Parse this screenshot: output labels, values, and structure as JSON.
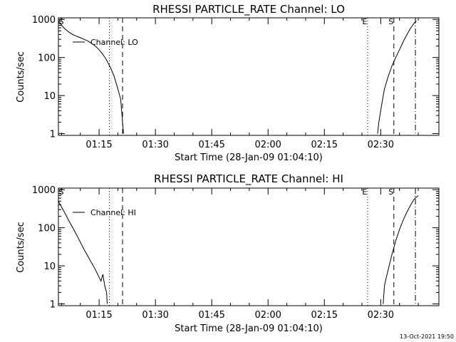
{
  "chart_data": [
    {
      "type": "line",
      "title": "RHESSI PARTICLE_RATE Channel: LO",
      "xlabel": "Start Time (28-Jan-09 01:04:10)",
      "ylabel": "Counts/sec",
      "yscale": "log",
      "xlim": [
        "01:04:10",
        "02:45:30"
      ],
      "ylim": [
        0.9,
        1100
      ],
      "x_ticks": [
        "01:15",
        "01:30",
        "01:45",
        "02:00",
        "02:15",
        "02:30"
      ],
      "y_ticks": [
        "1",
        "10",
        "100",
        "1000"
      ],
      "legend": {
        "placement": "top-left",
        "entries": [
          "Channel: LO"
        ]
      },
      "markers": [
        {
          "label": "S",
          "time": "01:04:10",
          "style": "none"
        },
        {
          "label": "",
          "time": "01:17:45",
          "style": "dotted"
        },
        {
          "label": "",
          "time": "01:21:15",
          "style": "dashed"
        },
        {
          "label": "E",
          "time": "02:26:30",
          "style": "dotted"
        },
        {
          "label": "S",
          "time": "02:33:30",
          "style": "dashed"
        },
        {
          "label": "",
          "time": "02:39:15",
          "style": "dashdot"
        }
      ],
      "series": [
        {
          "name": "Channel: LO",
          "segments": [
            [
              [
                "01:04:10",
                900
              ],
              [
                "01:05:00",
                700
              ],
              [
                "01:06:00",
                550
              ],
              [
                "01:07:00",
                460
              ],
              [
                "01:08:00",
                400
              ],
              [
                "01:09:00",
                360
              ],
              [
                "01:10:00",
                330
              ],
              [
                "01:11:00",
                300
              ],
              [
                "01:12:00",
                270
              ],
              [
                "01:13:00",
                235
              ],
              [
                "01:14:00",
                200
              ],
              [
                "01:15:00",
                160
              ],
              [
                "01:16:00",
                120
              ],
              [
                "01:17:00",
                85
              ],
              [
                "01:18:00",
                55
              ],
              [
                "01:19:00",
                32
              ],
              [
                "01:20:00",
                15
              ],
              [
                "01:20:45",
                8
              ],
              [
                "01:21:00",
                4
              ],
              [
                "01:21:15",
                2
              ],
              [
                "01:21:30",
                1
              ]
            ],
            [
              [
                "02:29:10",
                1
              ],
              [
                "02:29:30",
                2
              ],
              [
                "02:30:00",
                4
              ],
              [
                "02:30:30",
                8
              ],
              [
                "02:31:00",
                15
              ],
              [
                "02:32:00",
                32
              ],
              [
                "02:33:00",
                60
              ],
              [
                "02:34:00",
                100
              ],
              [
                "02:35:00",
                160
              ],
              [
                "02:36:00",
                260
              ],
              [
                "02:37:00",
                400
              ],
              [
                "02:38:00",
                600
              ],
              [
                "02:39:00",
                820
              ],
              [
                "02:39:30",
                900
              ]
            ]
          ]
        }
      ]
    },
    {
      "type": "line",
      "title": "RHESSI PARTICLE_RATE Channel: HI",
      "xlabel": "Start Time (28-Jan-09 01:04:10)",
      "ylabel": "Counts/sec",
      "yscale": "log",
      "xlim": [
        "01:04:10",
        "02:45:30"
      ],
      "ylim": [
        0.9,
        1100
      ],
      "x_ticks": [
        "01:15",
        "01:30",
        "01:45",
        "02:00",
        "02:15",
        "02:30"
      ],
      "y_ticks": [
        "1",
        "10",
        "100",
        "1000"
      ],
      "legend": {
        "placement": "top-left",
        "entries": [
          "Channel: HI"
        ]
      },
      "markers": [
        {
          "label": "S",
          "time": "01:04:10",
          "style": "none"
        },
        {
          "label": "",
          "time": "01:17:45",
          "style": "dotted"
        },
        {
          "label": "",
          "time": "01:21:15",
          "style": "dashed"
        },
        {
          "label": "E",
          "time": "02:26:30",
          "style": "dotted"
        },
        {
          "label": "S",
          "time": "02:33:30",
          "style": "dashed"
        },
        {
          "label": "",
          "time": "02:39:15",
          "style": "dashdot"
        }
      ],
      "series": [
        {
          "name": "Channel: HI",
          "segments": [
            [
              [
                "01:04:10",
                500
              ],
              [
                "01:05:00",
                350
              ],
              [
                "01:06:00",
                230
              ],
              [
                "01:07:00",
                150
              ],
              [
                "01:08:00",
                100
              ],
              [
                "01:09:00",
                65
              ],
              [
                "01:10:00",
                42
              ],
              [
                "01:11:00",
                27
              ],
              [
                "01:12:00",
                18
              ],
              [
                "01:13:00",
                12
              ],
              [
                "01:14:00",
                8
              ],
              [
                "01:15:00",
                5
              ],
              [
                "01:15:30",
                4
              ],
              [
                "01:16:00",
                6
              ],
              [
                "01:16:30",
                3
              ],
              [
                "01:17:00",
                2
              ],
              [
                "01:17:10",
                1
              ]
            ],
            [
              [
                "02:30:40",
                1
              ],
              [
                "02:31:00",
                3
              ],
              [
                "02:31:30",
                5
              ],
              [
                "02:32:00",
                8
              ],
              [
                "02:33:00",
                20
              ],
              [
                "02:34:00",
                45
              ],
              [
                "02:35:00",
                90
              ],
              [
                "02:36:00",
                160
              ],
              [
                "02:37:00",
                260
              ],
              [
                "02:38:00",
                400
              ],
              [
                "02:39:00",
                580
              ],
              [
                "02:40:00",
                700
              ]
            ]
          ]
        }
      ]
    }
  ],
  "footer": {
    "timestamp": "13-Oct-2021 19:50"
  }
}
